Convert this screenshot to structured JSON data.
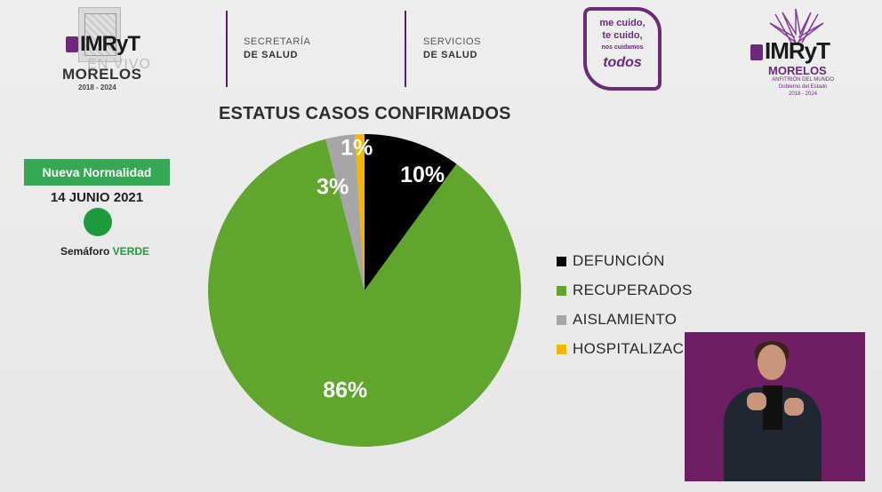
{
  "header": {
    "left_logo": {
      "brand": "IMRyT",
      "overlay": "EN VIVO",
      "region": "MORELOS",
      "years": "2018 - 2024"
    },
    "dept_1": {
      "line1": "SECRETARÍA",
      "line2": "DE SALUD"
    },
    "dept_2": {
      "line1": "SERVICIOS",
      "line2": "DE SALUD"
    },
    "campaign": {
      "line1": "me cuido,",
      "line2": "te cuido,",
      "line3": "nos cuidamos",
      "line4": "todos"
    },
    "right_logo": {
      "brand": "IMRyT",
      "region": "MORELOS",
      "subtitle": "ANFITRIÓN DEL MUNDO",
      "tagline": "Gobierno del Estado",
      "years": "2018 - 2024"
    }
  },
  "status_panel": {
    "banner": "Nueva Normalidad",
    "date": "14 JUNIO 2021",
    "semaforo_prefix": "Semáforo",
    "semaforo_value": "VERDE",
    "semaforo_color": "#1e9b3c"
  },
  "chart_data": {
    "type": "pie",
    "title": "ESTATUS CASOS CONFIRMADOS",
    "start_angle_deg": 0,
    "slices": [
      {
        "label": "DEFUNCIÓN",
        "value": 10,
        "display": "10%",
        "color": "#000000"
      },
      {
        "label": "RECUPERADOS",
        "value": 86,
        "display": "86%",
        "color": "#5fa52e"
      },
      {
        "label": "AISLAMIENTO",
        "value": 3,
        "display": "3%",
        "color": "#a6a6a6"
      },
      {
        "label": "HOSPITALIZACI",
        "value": 1,
        "display": "1%",
        "color": "#f7b500"
      }
    ],
    "legend_position": "right"
  }
}
